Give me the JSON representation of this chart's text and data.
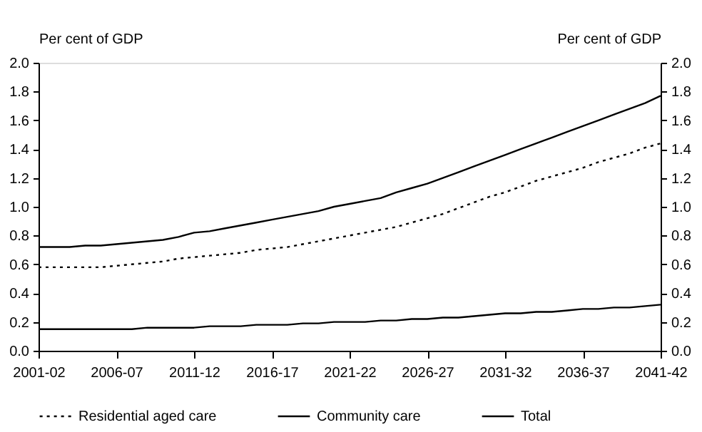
{
  "chart_data": {
    "type": "line",
    "ylabel": "Per cent of GDP",
    "y2label": "Per cent of GDP",
    "categories": [
      "2001-02",
      null,
      null,
      null,
      null,
      "2006-07",
      null,
      null,
      null,
      null,
      "2011-12",
      null,
      null,
      null,
      null,
      "2016-17",
      null,
      null,
      null,
      null,
      "2021-22",
      null,
      null,
      null,
      null,
      "2026-27",
      null,
      null,
      null,
      null,
      "2031-32",
      null,
      null,
      null,
      null,
      "2036-37",
      null,
      null,
      null,
      null,
      "2041-42"
    ],
    "series": [
      {
        "name": "Residential aged care",
        "color": "#000000",
        "line_style": "dotted",
        "values": [
          0.58,
          0.58,
          0.58,
          0.58,
          0.58,
          0.59,
          0.6,
          0.61,
          0.62,
          0.64,
          0.65,
          0.66,
          0.67,
          0.68,
          0.7,
          0.71,
          0.72,
          0.74,
          0.76,
          0.78,
          0.8,
          0.82,
          0.84,
          0.86,
          0.89,
          0.92,
          0.95,
          0.99,
          1.03,
          1.07,
          1.1,
          1.14,
          1.18,
          1.21,
          1.24,
          1.27,
          1.31,
          1.34,
          1.37,
          1.41,
          1.44
        ]
      },
      {
        "name": "Community care",
        "color": "#000000",
        "line_style": "solid",
        "values": [
          0.15,
          0.15,
          0.15,
          0.15,
          0.15,
          0.15,
          0.15,
          0.16,
          0.16,
          0.16,
          0.16,
          0.17,
          0.17,
          0.17,
          0.18,
          0.18,
          0.18,
          0.19,
          0.19,
          0.2,
          0.2,
          0.2,
          0.21,
          0.21,
          0.22,
          0.22,
          0.23,
          0.23,
          0.24,
          0.25,
          0.26,
          0.26,
          0.27,
          0.27,
          0.28,
          0.29,
          0.29,
          0.3,
          0.3,
          0.31,
          0.32
        ]
      },
      {
        "name": "Total",
        "color": "#000000",
        "line_style": "solid",
        "values": [
          0.72,
          0.72,
          0.72,
          0.73,
          0.73,
          0.74,
          0.75,
          0.76,
          0.77,
          0.79,
          0.82,
          0.83,
          0.85,
          0.87,
          0.89,
          0.91,
          0.93,
          0.95,
          0.97,
          1.0,
          1.02,
          1.04,
          1.06,
          1.1,
          1.13,
          1.16,
          1.2,
          1.24,
          1.28,
          1.32,
          1.36,
          1.4,
          1.44,
          1.48,
          1.52,
          1.56,
          1.6,
          1.64,
          1.68,
          1.72,
          1.77
        ]
      }
    ],
    "ylim": [
      0,
      2
    ],
    "yticks": [
      {
        "value": 0,
        "label": "0.0"
      },
      0.2,
      0.4,
      0.6,
      0.8,
      {
        "value": 1,
        "label": "1.0"
      },
      1.2,
      1.4,
      1.6,
      1.8,
      {
        "value": 2,
        "label": "2.0"
      }
    ],
    "y2lim": [
      0,
      2
    ],
    "y2ticks": [
      {
        "value": 0,
        "label": "0.0"
      },
      0.2,
      0.4,
      0.6,
      0.8,
      {
        "value": 1,
        "label": "1.0"
      },
      1.2,
      1.4,
      1.6,
      1.8,
      {
        "value": 2,
        "label": "2.0"
      }
    ],
    "grid": false,
    "legend": "bottom",
    "marker": "none"
  }
}
